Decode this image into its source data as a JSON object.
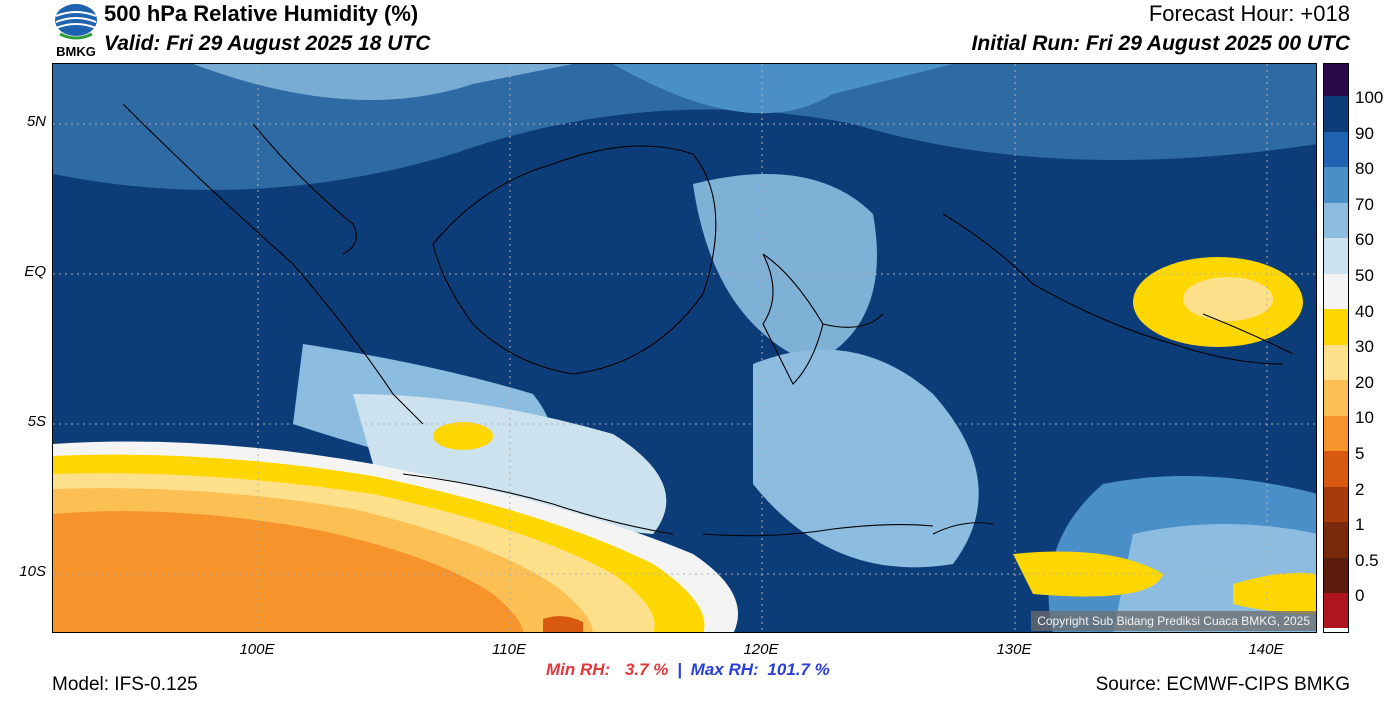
{
  "header": {
    "title": "500 hPa Relative Humidity (%)",
    "valid": "Valid: Fri 29 August 2025 18 UTC",
    "forecast_hour": "Forecast Hour: +018",
    "initial_run": "Initial Run: Fri 29 August 2025 00 UTC",
    "logo_text": "BMKG"
  },
  "map": {
    "lat_labels": [
      "5N",
      "EQ",
      "5S",
      "10S"
    ],
    "lon_labels": [
      "100E",
      "110E",
      "120E",
      "130E",
      "140E"
    ],
    "copyright": "Copyright Sub Bidang Prediksi Cuaca BMKG, 2025"
  },
  "colorbar": {
    "labels": [
      "100",
      "90",
      "80",
      "70",
      "60",
      "50",
      "40",
      "30",
      "20",
      "10",
      "5",
      "2",
      "1",
      "0.5",
      "0"
    ],
    "colors": [
      "#2a0a4a",
      "#0d3d78",
      "#1f63b0",
      "#4a8fc8",
      "#8cbde0",
      "#cde2ef",
      "#f4f4f4",
      "#ffd700",
      "#ffe08a",
      "#fbbf54",
      "#f7932b",
      "#d85a10",
      "#a53a0a",
      "#7a2a0a",
      "#5c1c0c",
      "#b0141c",
      "#e8392e"
    ]
  },
  "stats": {
    "min_label": "Min RH:",
    "min_value": "3.7 %",
    "separator": "|",
    "max_label": "Max RH:",
    "max_value": "101.7 %"
  },
  "footer": {
    "model": "Model: IFS-0.125",
    "source": "Source: ECMWF-CIPS BMKG"
  }
}
